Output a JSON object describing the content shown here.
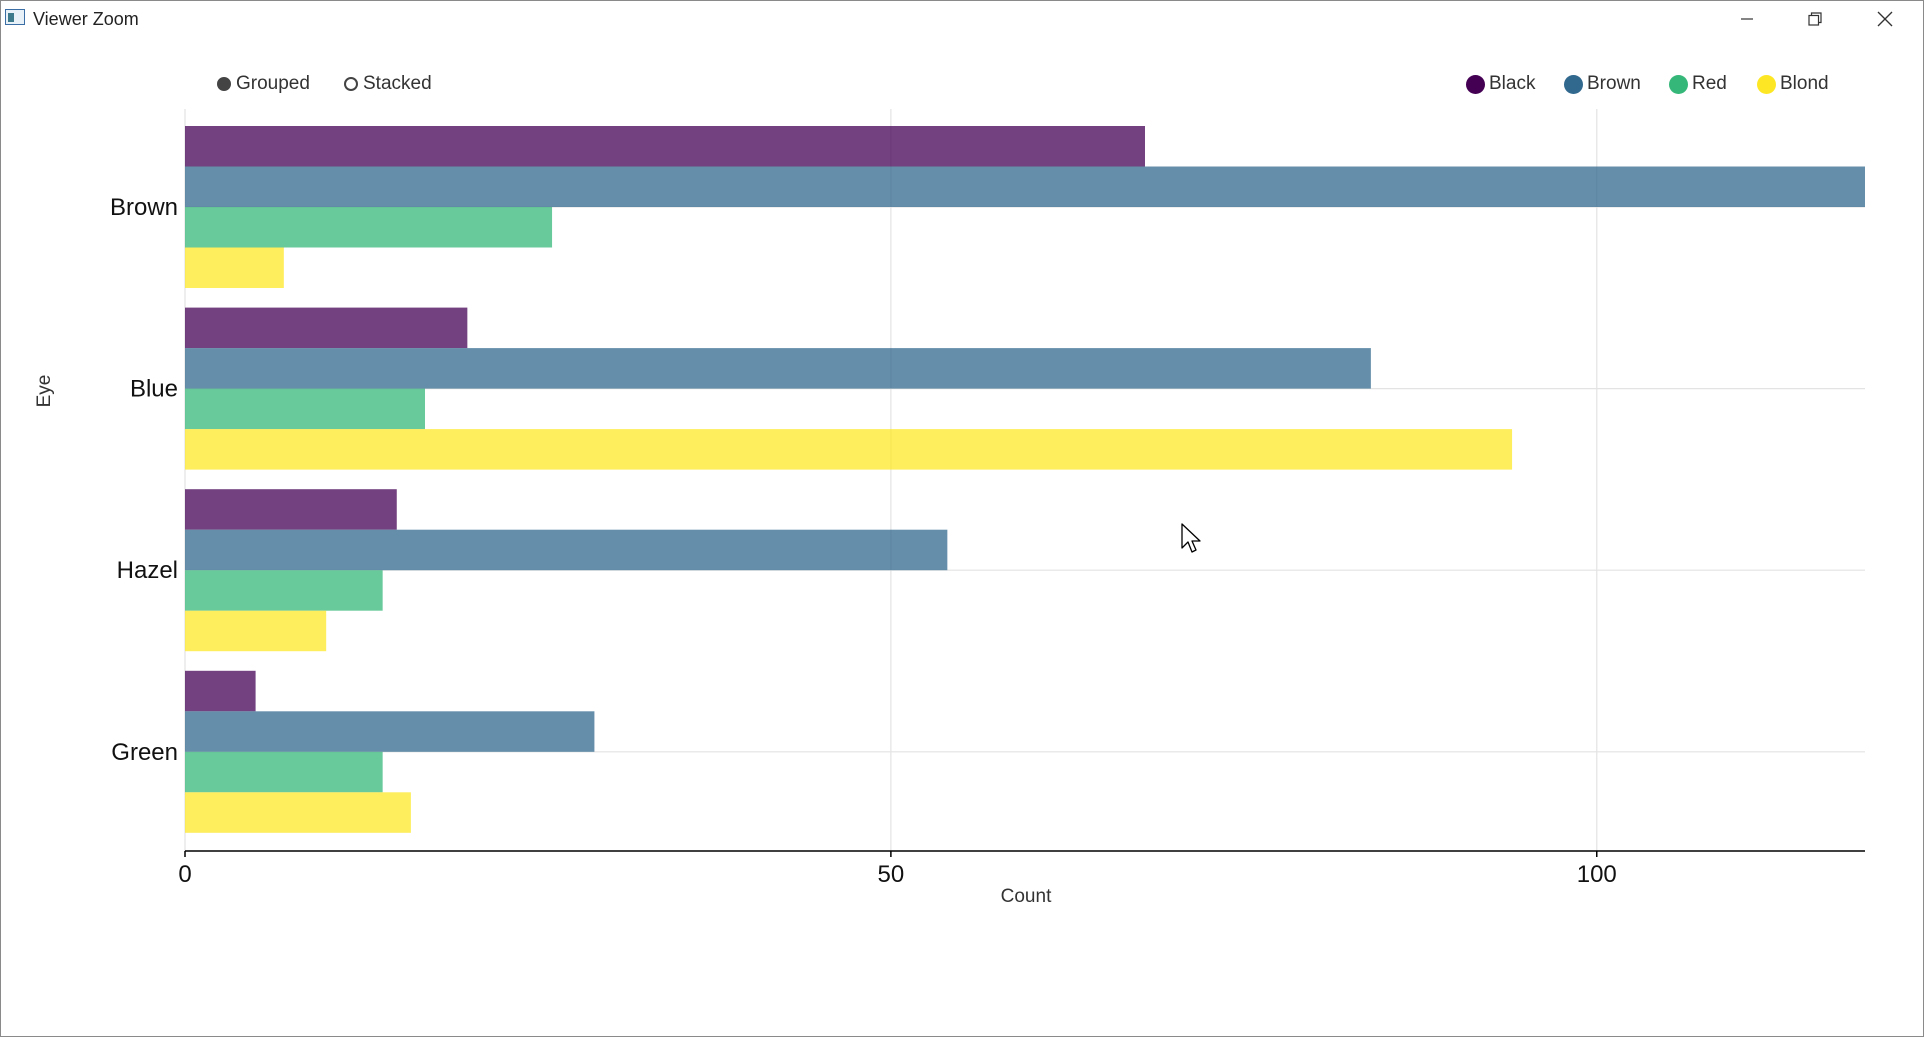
{
  "window": {
    "title": "Viewer Zoom"
  },
  "controls": {
    "grouped_label": "Grouped",
    "stacked_label": "Stacked",
    "mode": "grouped"
  },
  "icons": {
    "app": "app-icon",
    "minimize": "minimize-icon",
    "restore": "restore-icon",
    "close": "close-icon",
    "cursor": "mouse-cursor-icon"
  },
  "chart_data": {
    "type": "bar",
    "orientation": "horizontal",
    "mode": "grouped",
    "title": "",
    "xlabel": "Count",
    "ylabel": "Eye",
    "categories": [
      "Brown",
      "Blue",
      "Hazel",
      "Green"
    ],
    "xlim": [
      0,
      119
    ],
    "xticks": [
      0,
      50,
      100
    ],
    "grid": true,
    "legend_position": "top-right",
    "series": [
      {
        "name": "Black",
        "color": "#440154",
        "values": [
          68,
          20,
          15,
          5
        ]
      },
      {
        "name": "Brown",
        "color": "#31688e",
        "values": [
          119,
          84,
          54,
          29
        ]
      },
      {
        "name": "Red",
        "color": "#35b779",
        "values": [
          26,
          17,
          14,
          14
        ]
      },
      {
        "name": "Blond",
        "color": "#fde725",
        "values": [
          7,
          94,
          10,
          16
        ]
      }
    ]
  }
}
